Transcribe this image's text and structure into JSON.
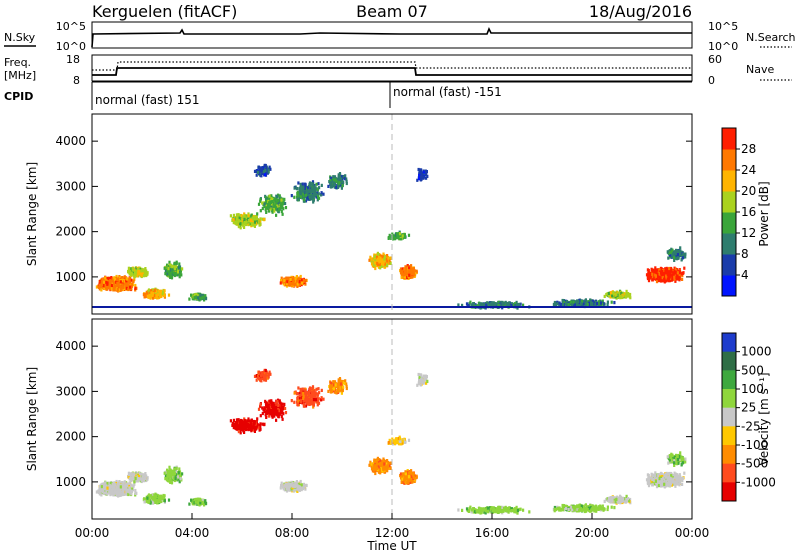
{
  "header": {
    "station": "Kerguelen (fitACF)",
    "beam": "Beam 07",
    "date": "18/Aug/2016"
  },
  "panels": {
    "nsky": {
      "left_label": "N.Sky",
      "right_label": "N.Search",
      "left_ticks": [
        "10^5",
        "10^0"
      ],
      "right_ticks": [
        "10^5",
        "10^0"
      ]
    },
    "freq": {
      "left_label_1": "Freq.",
      "left_label_2": "[MHz]",
      "left_ticks": [
        "18",
        "8"
      ],
      "right_label": "Nave",
      "right_ticks": [
        "60",
        "0"
      ]
    },
    "cpid": {
      "label": "CPID",
      "segments": [
        "normal (fast) 151",
        "normal (fast) -151"
      ]
    }
  },
  "chart_data": [
    {
      "type": "heatmap",
      "name": "power",
      "ylabel": "Slant Range [km]",
      "ylim": [
        180,
        4600
      ],
      "yticks": [
        "1000",
        "2000",
        "3000",
        "4000"
      ],
      "colorbar_label": "Power [dB]",
      "colorbar_ticks": [
        "4",
        "8",
        "12",
        "16",
        "20",
        "24",
        "28"
      ],
      "colors": [
        "#0014ff",
        "#1a3caa",
        "#2e7d6e",
        "#3aa53a",
        "#aad21e",
        "#ffb400",
        "#ff7800",
        "#ff1e00"
      ]
    },
    {
      "type": "heatmap",
      "name": "velocity",
      "ylabel": "Slant Range [km]",
      "ylim": [
        180,
        4600
      ],
      "yticks": [
        "1000",
        "2000",
        "3000",
        "4000"
      ],
      "xlabel": "Time UT",
      "xticks": [
        "00:00",
        "04:00",
        "08:00",
        "12:00",
        "16:00",
        "20:00",
        "00:00"
      ],
      "colorbar_label": "Velocity [m s⁻¹]",
      "colorbar_ticks": [
        "1000",
        "500",
        "100",
        "25",
        "-25",
        "-100",
        "-500",
        "-1000"
      ],
      "colors": [
        "#1e3ccc",
        "#2f6e46",
        "#3ea83e",
        "#8fd63c",
        "#c8c8c8",
        "#ffc800",
        "#ff8c00",
        "#ff4b1e",
        "#e60000"
      ]
    }
  ]
}
